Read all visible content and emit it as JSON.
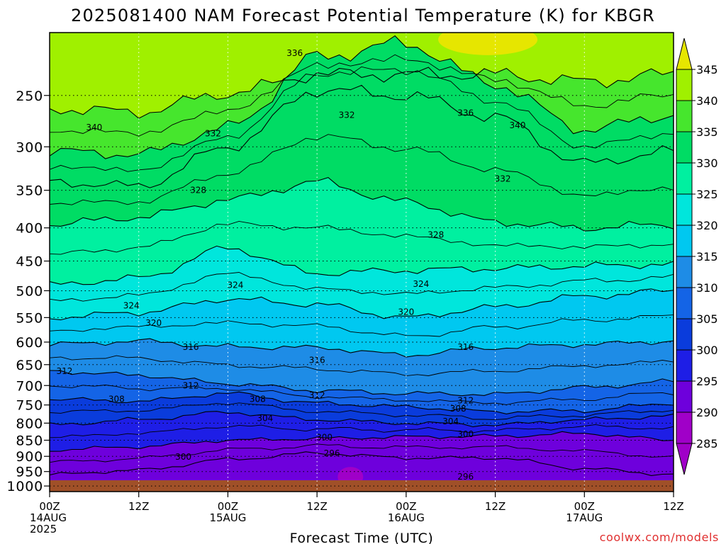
{
  "title": "2025081400 NAM Forecast Potential Temperature (K) for KBGR",
  "credit": "coolwx.com/models",
  "chart_data": {
    "type": "heatmap",
    "title": "2025081400 NAM Forecast Potential Temperature (K) for KBGR",
    "xlabel": "Forecast Time (UTC)",
    "ylabel": "",
    "x_hours": [
      0,
      12,
      24,
      36,
      48,
      60,
      72,
      84
    ],
    "x_tick_labels": [
      [
        "00Z",
        "14AUG",
        "2025"
      ],
      [
        "12Z"
      ],
      [
        "00Z",
        "15AUG"
      ],
      [
        "12Z"
      ],
      [
        "00Z",
        "16AUG"
      ],
      [
        "12Z"
      ],
      [
        "00Z",
        "17AUG"
      ],
      [
        "12Z"
      ]
    ],
    "xlim": [
      0,
      84
    ],
    "y_pressure_hpa": [
      250,
      300,
      350,
      400,
      450,
      500,
      550,
      600,
      650,
      700,
      750,
      800,
      850,
      900,
      950,
      1000
    ],
    "ylim": [
      1020,
      200
    ],
    "y_scale": "log-pressure",
    "grid": true,
    "colorbar": {
      "levels": [
        285,
        290,
        295,
        300,
        305,
        310,
        315,
        320,
        325,
        330,
        335,
        340,
        345
      ],
      "colors": [
        "#a000c8",
        "#6e00dc",
        "#1e1ee6",
        "#0a3cdc",
        "#1464e6",
        "#1e8ce6",
        "#00c8f0",
        "#00e6dc",
        "#00f0a0",
        "#00dc64",
        "#46e62d",
        "#a0f000",
        "#e6e600"
      ],
      "extend": "both",
      "position": "right"
    },
    "contour_interval": 4,
    "series": [
      {
        "name": "340",
        "label_at": [
          [
            6,
            280
          ],
          [
            63,
            278
          ]
        ],
        "values": [
          262,
          265,
          248,
          232,
          232,
          232,
          238,
          232
        ]
      },
      {
        "name": "336",
        "label_at": [
          [
            33,
            215
          ],
          [
            56,
            266
          ]
        ],
        "values": [
          305,
          308,
          280,
          218,
          208,
          240,
          282,
          268
        ]
      },
      {
        "name": "332",
        "label_at": [
          [
            22,
            286
          ],
          [
            40,
            268
          ],
          [
            61,
            336
          ]
        ],
        "values": [
          340,
          345,
          300,
          245,
          250,
          270,
          318,
          305
        ]
      },
      {
        "name": "328",
        "label_at": [
          [
            20,
            350
          ],
          [
            52,
            410
          ]
        ],
        "values": [
          395,
          385,
          362,
          340,
          365,
          392,
          400,
          395
        ]
      },
      {
        "name": "324",
        "label_at": [
          [
            11,
            527
          ],
          [
            25,
            490
          ],
          [
            50,
            488
          ]
        ],
        "values": [
          490,
          478,
          430,
          470,
          465,
          462,
          458,
          455
        ]
      },
      {
        "name": "320",
        "label_at": [
          [
            14,
            561
          ],
          [
            48,
            539
          ]
        ],
        "values": [
          550,
          540,
          515,
          525,
          550,
          530,
          510,
          500
        ]
      },
      {
        "name": "316",
        "label_at": [
          [
            19,
            611
          ],
          [
            36,
            640
          ],
          [
            56,
            611
          ]
        ],
        "values": [
          605,
          598,
          610,
          612,
          628,
          612,
          605,
          598
        ]
      },
      {
        "name": "312",
        "label_at": [
          [
            2,
            665
          ],
          [
            19,
            700
          ],
          [
            36,
            725
          ],
          [
            56,
            738
          ]
        ],
        "values": [
          665,
          675,
          695,
          712,
          720,
          722,
          705,
          690
        ]
      },
      {
        "name": "308",
        "label_at": [
          [
            9,
            735
          ],
          [
            28,
            735
          ],
          [
            55,
            760
          ]
        ],
        "values": [
          735,
          740,
          720,
          745,
          755,
          768,
          765,
          745
        ]
      },
      {
        "name": "304",
        "label_at": [
          [
            29,
            786
          ],
          [
            54,
            795
          ]
        ],
        "values": [
          805,
          790,
          770,
          790,
          800,
          805,
          790,
          780
        ]
      },
      {
        "name": "300",
        "label_at": [
          [
            18,
            902
          ],
          [
            37,
            842
          ],
          [
            56,
            832
          ]
        ],
        "values": [
          880,
          870,
          850,
          845,
          840,
          838,
          830,
          850
        ]
      },
      {
        "name": "296",
        "label_at": [
          [
            38,
            890
          ],
          [
            56,
            968
          ]
        ],
        "values": [
          960,
          945,
          910,
          890,
          905,
          905,
          940,
          960
        ]
      }
    ],
    "surface_fill": "#a05028"
  }
}
